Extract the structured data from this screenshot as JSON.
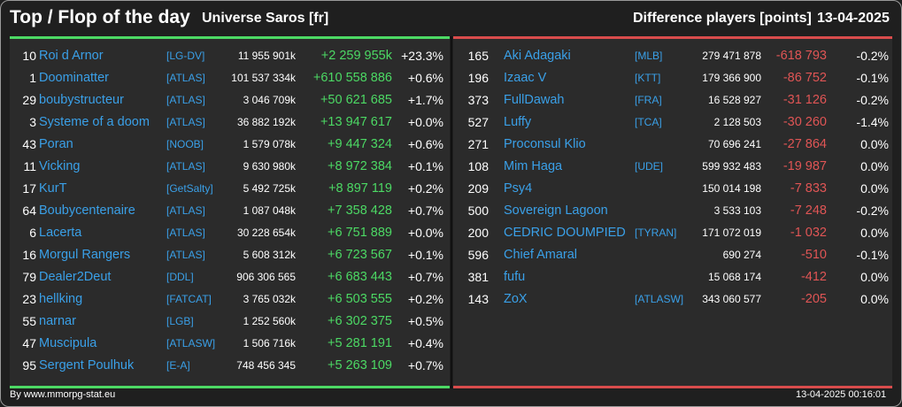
{
  "header": {
    "title": "Top / Flop of the day",
    "universe": "Universe Saros [fr]",
    "difference_label": "Difference players [points]",
    "date": "13-04-2025"
  },
  "top": [
    {
      "rank": "10",
      "name": "Roi d Arnor",
      "alliance": "[LG-DV]",
      "points": "11 955 901k",
      "diff": "+2 259 955k",
      "pct": "+23.3%"
    },
    {
      "rank": "1",
      "name": "Doominatter",
      "alliance": "[ATLAS]",
      "points": "101 537 334k",
      "diff": "+610 558 886",
      "pct": "+0.6%"
    },
    {
      "rank": "29",
      "name": "boubystructeur",
      "alliance": "[ATLAS]",
      "points": "3 046 709k",
      "diff": "+50 621 685",
      "pct": "+1.7%"
    },
    {
      "rank": "3",
      "name": "Systeme of a doom",
      "alliance": "[ATLAS]",
      "points": "36 882 192k",
      "diff": "+13 947 617",
      "pct": "+0.0%"
    },
    {
      "rank": "43",
      "name": "Poran",
      "alliance": "[NOOB]",
      "points": "1 579 078k",
      "diff": "+9 447 324",
      "pct": "+0.6%"
    },
    {
      "rank": "11",
      "name": "Vicking",
      "alliance": "[ATLAS]",
      "points": "9 630 980k",
      "diff": "+8 972 384",
      "pct": "+0.1%"
    },
    {
      "rank": "17",
      "name": "KurT",
      "alliance": "[GetSalty]",
      "points": "5 492 725k",
      "diff": "+8 897 119",
      "pct": "+0.2%"
    },
    {
      "rank": "64",
      "name": "Boubycentenaire",
      "alliance": "[ATLAS]",
      "points": "1 087 048k",
      "diff": "+7 358 428",
      "pct": "+0.7%"
    },
    {
      "rank": "6",
      "name": "Lacerta",
      "alliance": "[ATLAS]",
      "points": "30 228 654k",
      "diff": "+6 751 889",
      "pct": "+0.0%"
    },
    {
      "rank": "16",
      "name": "Morgul Rangers",
      "alliance": "[ATLAS]",
      "points": "5 608 312k",
      "diff": "+6 723 567",
      "pct": "+0.1%"
    },
    {
      "rank": "79",
      "name": "Dealer2Deut",
      "alliance": "[DDL]",
      "points": "906 306 565",
      "diff": "+6 683 443",
      "pct": "+0.7%"
    },
    {
      "rank": "23",
      "name": "hellking",
      "alliance": "[FATCAT]",
      "points": "3 765 032k",
      "diff": "+6 503 555",
      "pct": "+0.2%"
    },
    {
      "rank": "55",
      "name": "narnar",
      "alliance": "[LGB]",
      "points": "1 252 560k",
      "diff": "+6 302 375",
      "pct": "+0.5%"
    },
    {
      "rank": "47",
      "name": "Muscipula",
      "alliance": "[ATLASW]",
      "points": "1 506 716k",
      "diff": "+5 281 191",
      "pct": "+0.4%"
    },
    {
      "rank": "95",
      "name": "Sergent Poulhuk",
      "alliance": "[E-A]",
      "points": "748 456 345",
      "diff": "+5 263 109",
      "pct": "+0.7%"
    }
  ],
  "flop": [
    {
      "rank": "165",
      "name": "Aki Adagaki",
      "alliance": "[MLB]",
      "points": "279 471 878",
      "diff": "-618 793",
      "pct": "-0.2%"
    },
    {
      "rank": "196",
      "name": "Izaac V",
      "alliance": "[KTT]",
      "points": "179 366 900",
      "diff": "-86 752",
      "pct": "-0.1%"
    },
    {
      "rank": "373",
      "name": "FullDawah",
      "alliance": "[FRA]",
      "points": "16 528 927",
      "diff": "-31 126",
      "pct": "-0.2%"
    },
    {
      "rank": "527",
      "name": "Luffy",
      "alliance": "[TCA]",
      "points": "2 128 503",
      "diff": "-30 260",
      "pct": "-1.4%"
    },
    {
      "rank": "271",
      "name": "Proconsul Klio",
      "alliance": "",
      "points": "70 696 241",
      "diff": "-27 864",
      "pct": "0.0%"
    },
    {
      "rank": "108",
      "name": "Mim Haga",
      "alliance": "[UDE]",
      "points": "599 932 483",
      "diff": "-19 987",
      "pct": "0.0%"
    },
    {
      "rank": "209",
      "name": "Psy4",
      "alliance": "",
      "points": "150 014 198",
      "diff": "-7 833",
      "pct": "0.0%"
    },
    {
      "rank": "500",
      "name": "Sovereign Lagoon",
      "alliance": "",
      "points": "3 533 103",
      "diff": "-7 248",
      "pct": "-0.2%"
    },
    {
      "rank": "200",
      "name": "CEDRIC DOUMPIED",
      "alliance": "[TYRAN]",
      "points": "171 072 019",
      "diff": "-1 032",
      "pct": "0.0%"
    },
    {
      "rank": "596",
      "name": "Chief Amaral",
      "alliance": "",
      "points": "690 274",
      "diff": "-510",
      "pct": "-0.1%"
    },
    {
      "rank": "381",
      "name": "fufu",
      "alliance": "",
      "points": "15 068 174",
      "diff": "-412",
      "pct": "0.0%"
    },
    {
      "rank": "143",
      "name": "ZoX",
      "alliance": "[ATLASW]",
      "points": "343 060 577",
      "diff": "-205",
      "pct": "0.0%"
    }
  ],
  "footer": {
    "source": "By www.mmorpg-stat.eu",
    "timestamp": "13-04-2025 00:16:01"
  },
  "colors": {
    "background": "#1f1f1f",
    "panel": "#2b2b2b",
    "link": "#3aa0e8",
    "positive": "#4cd964",
    "negative": "#e05555"
  }
}
